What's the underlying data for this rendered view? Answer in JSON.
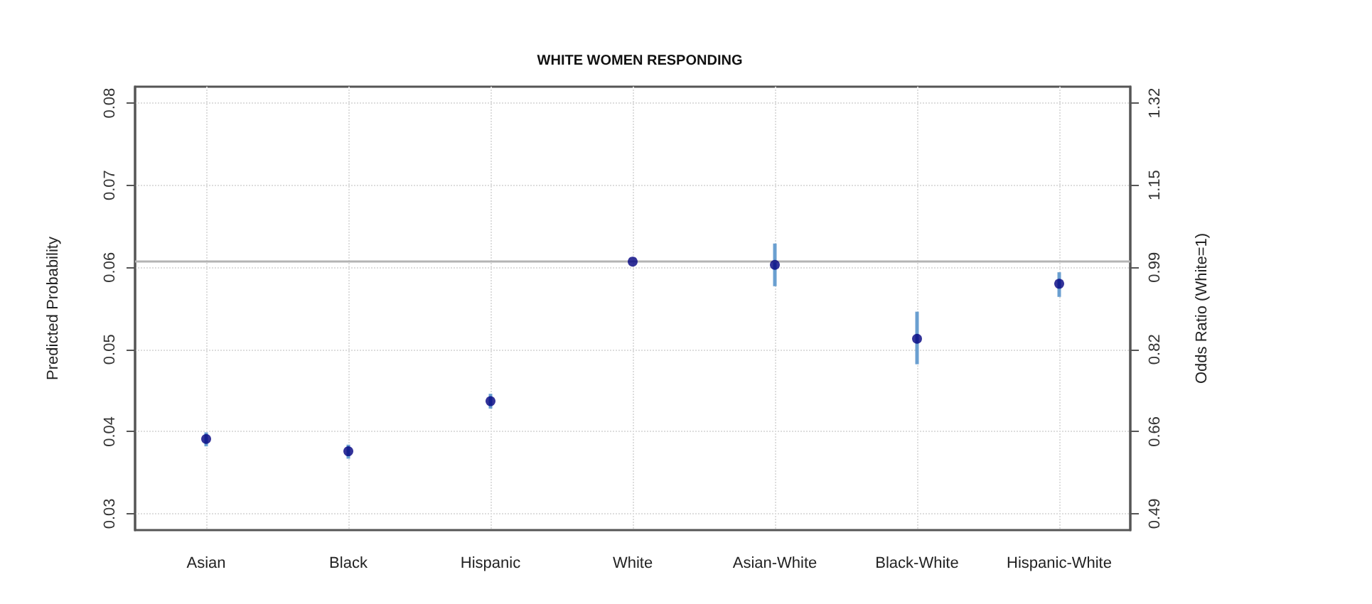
{
  "chart_data": {
    "type": "scatter",
    "title": "WHITE WOMEN RESPONDING",
    "ylabel": "Predicted Probability",
    "y2label": "Odds Ratio (White=1)",
    "categories": [
      "Asian",
      "Black",
      "Hispanic",
      "White",
      "Asian-White",
      "Black-White",
      "Hispanic-White"
    ],
    "values": [
      0.0391,
      0.0376,
      0.0437,
      0.0607,
      0.0603,
      0.0513,
      0.058
    ],
    "errors": [
      [
        0.0382,
        0.0399
      ],
      [
        0.0367,
        0.0384
      ],
      [
        0.0428,
        0.0446
      ],
      null,
      [
        0.0577,
        0.0629
      ],
      [
        0.0482,
        0.0546
      ],
      [
        0.0564,
        0.0594
      ]
    ],
    "color": "#00007f",
    "ylim": [
      0.028,
      0.082
    ],
    "yticks": [
      0.03,
      0.04,
      0.05,
      0.06,
      0.07,
      0.08
    ],
    "y2lim": [
      0.4568,
      1.3532
    ],
    "y2ticks": [
      0.49,
      {
        "value": 0.656,
        "label": "0.66"
      },
      {
        "value": 0.822,
        "label": "0.82"
      },
      {
        "value": 0.988,
        "label": "0.99"
      },
      {
        "value": 1.154,
        "label": "1.15"
      },
      1.32
    ],
    "ref_lines": [
      {
        "axis": "y2",
        "value": 1,
        "color": "#b4b4b4"
      }
    ],
    "grid": true,
    "marker": "circle"
  }
}
